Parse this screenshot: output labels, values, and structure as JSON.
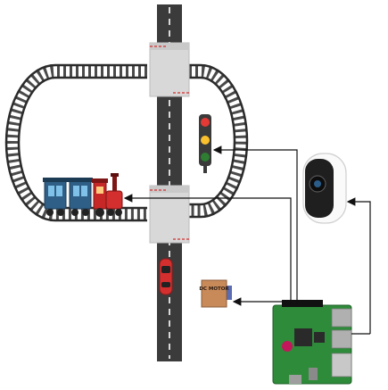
{
  "diagram": {
    "nodes": [
      {
        "id": "railway-track",
        "kind": "track"
      },
      {
        "id": "road",
        "kind": "road"
      },
      {
        "id": "level-crossing-top",
        "kind": "crossing"
      },
      {
        "id": "level-crossing-bottom",
        "kind": "crossing"
      },
      {
        "id": "train",
        "kind": "vehicle"
      },
      {
        "id": "car",
        "kind": "vehicle"
      },
      {
        "id": "traffic-signal",
        "kind": "signal",
        "lights": [
          "#e53935",
          "#fbc02d",
          "#2e7d32"
        ]
      },
      {
        "id": "camera",
        "kind": "sensor"
      },
      {
        "id": "dc-motor",
        "kind": "actuator",
        "label": "DC MOTOR"
      },
      {
        "id": "raspberry-pi",
        "kind": "controller"
      }
    ],
    "edges": [
      {
        "from": "camera",
        "to": "raspberry-pi"
      },
      {
        "from": "raspberry-pi",
        "to": "traffic-signal"
      },
      {
        "from": "raspberry-pi",
        "to": "train"
      },
      {
        "from": "raspberry-pi",
        "to": "dc-motor"
      }
    ]
  },
  "colors": {
    "track": "#3a3a3a",
    "road": "#3b3b3b",
    "road_line": "#ffffff",
    "crossing": "#d6d6d6",
    "train_body": "#2f5f86",
    "locomotive": "#c62828",
    "car": "#d32f2f",
    "board": "#2e8b3a",
    "motor": "#c98a5a",
    "arrow": "#111111"
  }
}
